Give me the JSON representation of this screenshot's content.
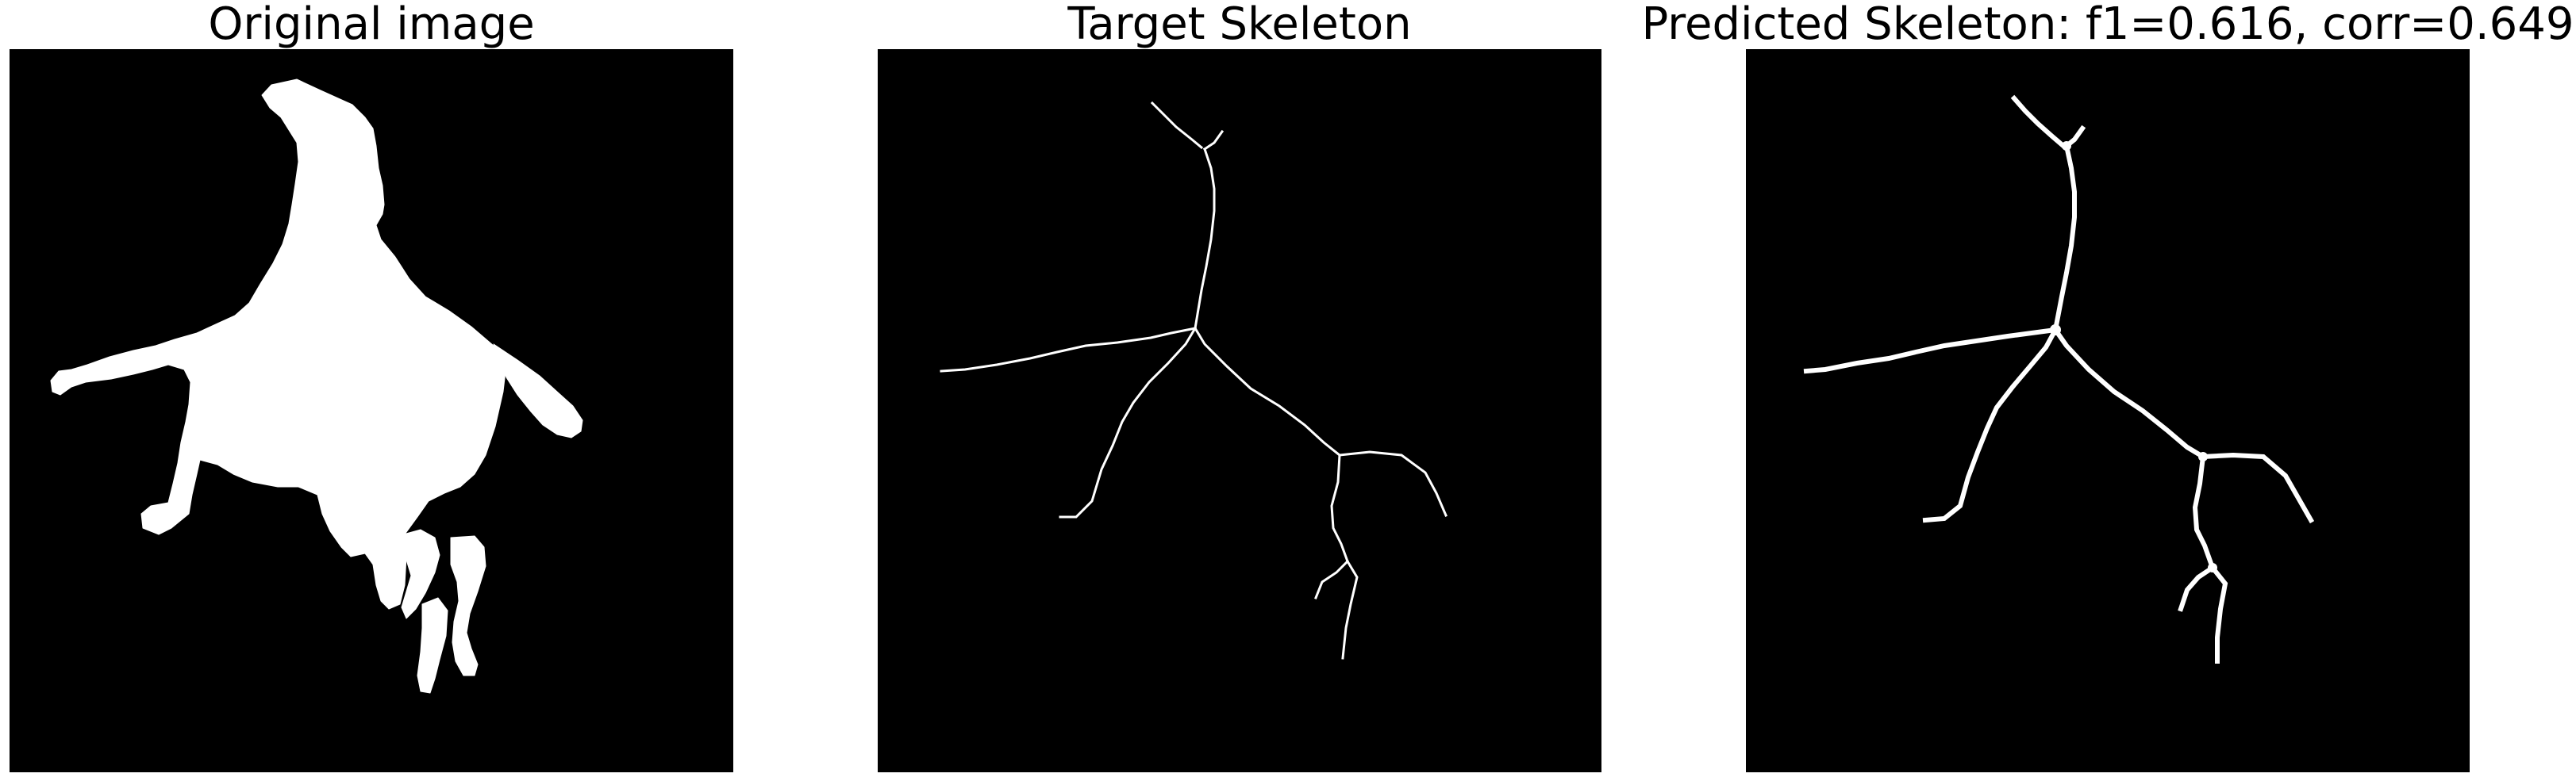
{
  "figure": {
    "panels": [
      {
        "title": "Original image"
      },
      {
        "title": "Target Skeleton"
      },
      {
        "title": "Predicted Skeleton: f1=0.616, corr=0.649"
      }
    ]
  },
  "colors": {
    "background": "#000000",
    "foreground": "#ffffff",
    "page": "#ffffff"
  }
}
